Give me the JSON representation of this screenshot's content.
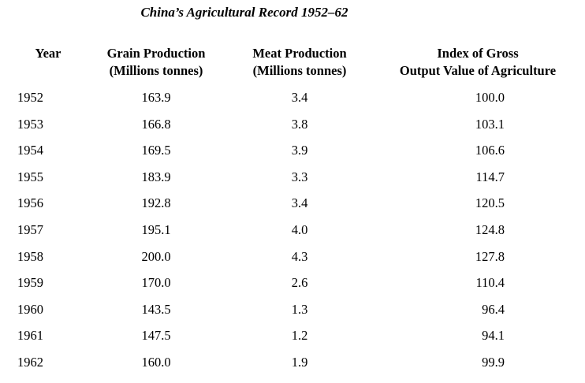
{
  "title": "China’s Agricultural Record 1952–62",
  "headers": {
    "year": [
      "Year"
    ],
    "grain": [
      "Grain Production",
      "(Millions tonnes)"
    ],
    "meat": [
      "Meat Production",
      "(Millions tonnes)"
    ],
    "index": [
      "Index of Gross",
      "Output Value of Agriculture"
    ]
  },
  "rows": [
    {
      "year": "1952",
      "grain": "163.9",
      "meat": "3.4",
      "index": "100.0"
    },
    {
      "year": "1953",
      "grain": "166.8",
      "meat": "3.8",
      "index": "103.1"
    },
    {
      "year": "1954",
      "grain": "169.5",
      "meat": "3.9",
      "index": "106.6"
    },
    {
      "year": "1955",
      "grain": "183.9",
      "meat": "3.3",
      "index": "114.7"
    },
    {
      "year": "1956",
      "grain": "192.8",
      "meat": "3.4",
      "index": "120.5"
    },
    {
      "year": "1957",
      "grain": "195.1",
      "meat": "4.0",
      "index": "124.8"
    },
    {
      "year": "1958",
      "grain": "200.0",
      "meat": "4.3",
      "index": "127.8"
    },
    {
      "year": "1959",
      "grain": "170.0",
      "meat": "2.6",
      "index": "110.4"
    },
    {
      "year": "1960",
      "grain": "143.5",
      "meat": "1.3",
      "index": "96.4"
    },
    {
      "year": "1961",
      "grain": "147.5",
      "meat": "1.2",
      "index": "94.1"
    },
    {
      "year": "1962",
      "grain": "160.0",
      "meat": "1.9",
      "index": "99.9"
    }
  ]
}
